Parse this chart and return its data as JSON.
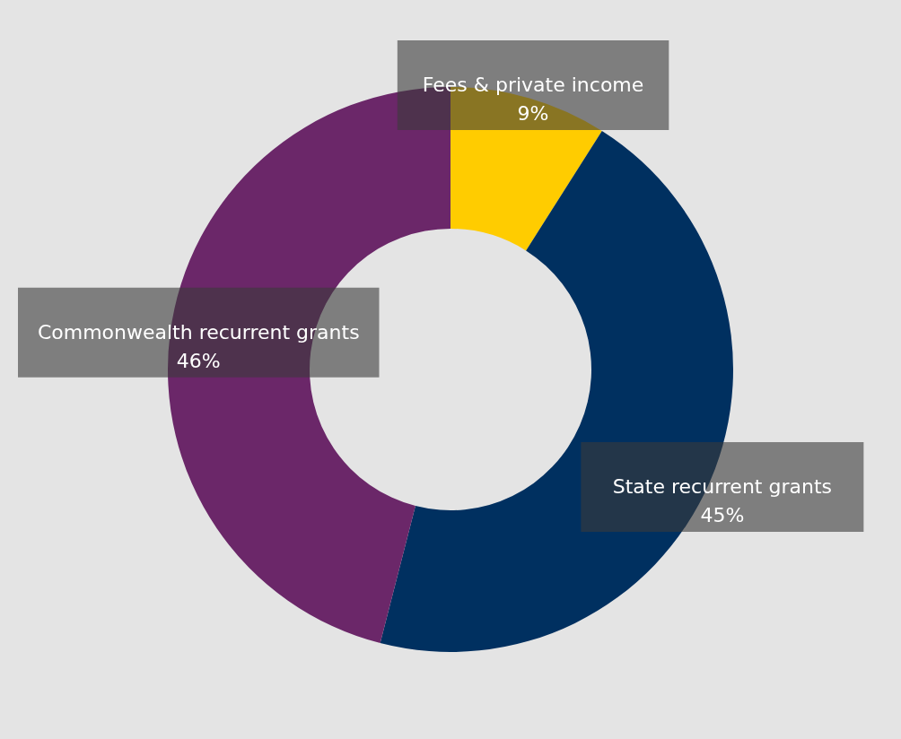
{
  "chart_data": {
    "type": "donut",
    "categories": [
      "Fees & private income",
      "State recurrent grants",
      "Commonwealth recurrent grants"
    ],
    "values": [
      9,
      45,
      46
    ],
    "value_labels": [
      "9%",
      "45%",
      "46%"
    ],
    "colors": [
      "#ffcc00",
      "#003060",
      "#6b2769"
    ]
  }
}
